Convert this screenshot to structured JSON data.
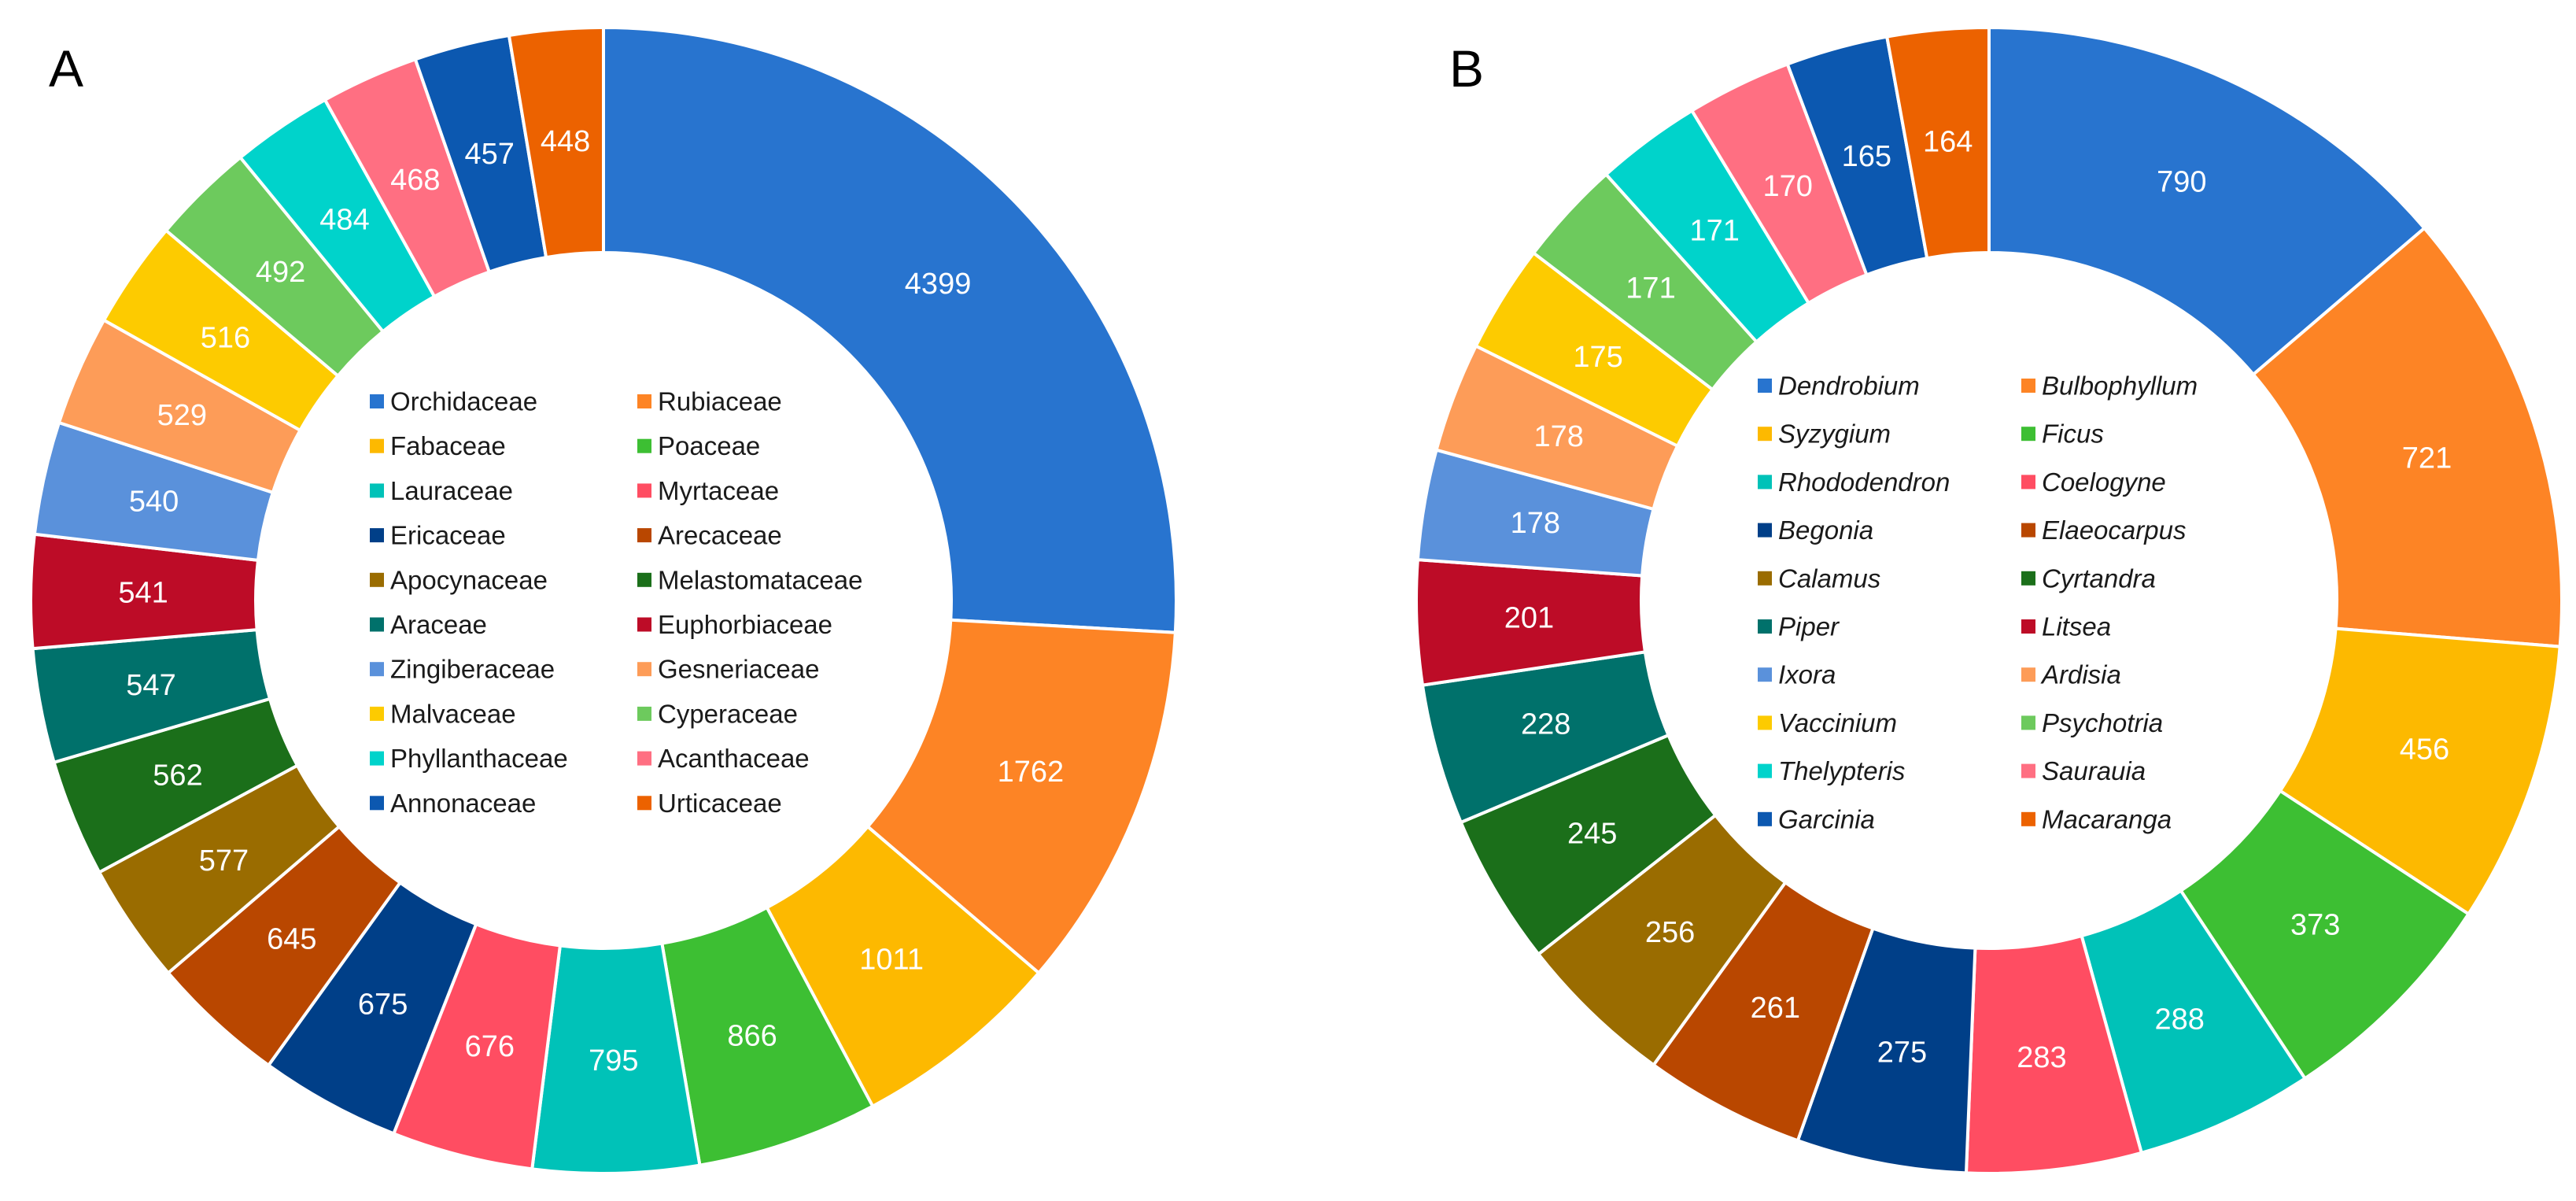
{
  "chart_data": [
    {
      "type": "pie",
      "variant": "donut",
      "panel_label": "A",
      "label_italic": false,
      "categories": [
        "Orchidaceae",
        "Rubiaceae",
        "Fabaceae",
        "Poaceae",
        "Lauraceae",
        "Myrtaceae",
        "Ericaceae",
        "Arecaceae",
        "Apocynaceae",
        "Melastomataceae",
        "Araceae",
        "Euphorbiaceae",
        "Zingiberaceae",
        "Gesneriaceae",
        "Malvaceae",
        "Cyperaceae",
        "Phyllanthaceae",
        "Acanthaceae",
        "Annonaceae",
        "Urticaceae"
      ],
      "values": [
        4399,
        1762,
        1011,
        866,
        795,
        676,
        675,
        645,
        577,
        562,
        547,
        541,
        540,
        529,
        516,
        492,
        484,
        468,
        457,
        448
      ],
      "data_labels": [
        "4399",
        "1762",
        "1011",
        "866",
        "795",
        "676",
        "675",
        "645",
        "577",
        "562",
        "547",
        "541",
        "540",
        "529",
        "516",
        "492",
        "484",
        "468",
        "457",
        "448"
      ],
      "colors": [
        "#2874cf",
        "#fd8425",
        "#fdb900",
        "#3dbf33",
        "#00c2b8",
        "#ff4d62",
        "#003f88",
        "#b94700",
        "#9a6c00",
        "#1b6f1a",
        "#00716b",
        "#bd0c27",
        "#5a91db",
        "#fd9c58",
        "#fdcb00",
        "#6dca5d",
        "#00d3cb",
        "#ff6f82",
        "#0c58b0",
        "#ec6200"
      ]
    },
    {
      "type": "pie",
      "variant": "donut",
      "panel_label": "B",
      "label_italic": true,
      "categories": [
        "Dendrobium",
        "Bulbophyllum",
        "Syzygium",
        "Ficus",
        "Rhododendron",
        "Coelogyne",
        "Begonia",
        "Elaeocarpus",
        "Calamus",
        "Cyrtandra",
        "Piper",
        "Litsea",
        "Ixora",
        "Ardisia",
        "Vaccinium",
        "Psychotria",
        "Thelypteris",
        "Saurauia",
        "Garcinia",
        "Macaranga"
      ],
      "values": [
        790,
        721,
        456,
        373,
        288,
        283,
        275,
        261,
        256,
        245,
        228,
        201,
        178,
        178,
        175,
        171,
        171,
        170,
        165,
        164
      ],
      "data_labels": [
        "790",
        "721",
        "456",
        "373",
        "288",
        "283",
        "275",
        "261",
        "256",
        "245",
        "228",
        "201",
        "178",
        "178",
        "175",
        "171",
        "171",
        "170",
        "165",
        "164"
      ],
      "colors": [
        "#2874cf",
        "#fd8425",
        "#fdb900",
        "#3dbf33",
        "#00c2b8",
        "#ff4d62",
        "#003f88",
        "#b94700",
        "#9a6c00",
        "#1b6f1a",
        "#00716b",
        "#bd0c27",
        "#5a91db",
        "#fd9c58",
        "#fdcb00",
        "#6dca5d",
        "#00d3cb",
        "#ff6f82",
        "#0c58b0",
        "#ec6200"
      ]
    }
  ]
}
